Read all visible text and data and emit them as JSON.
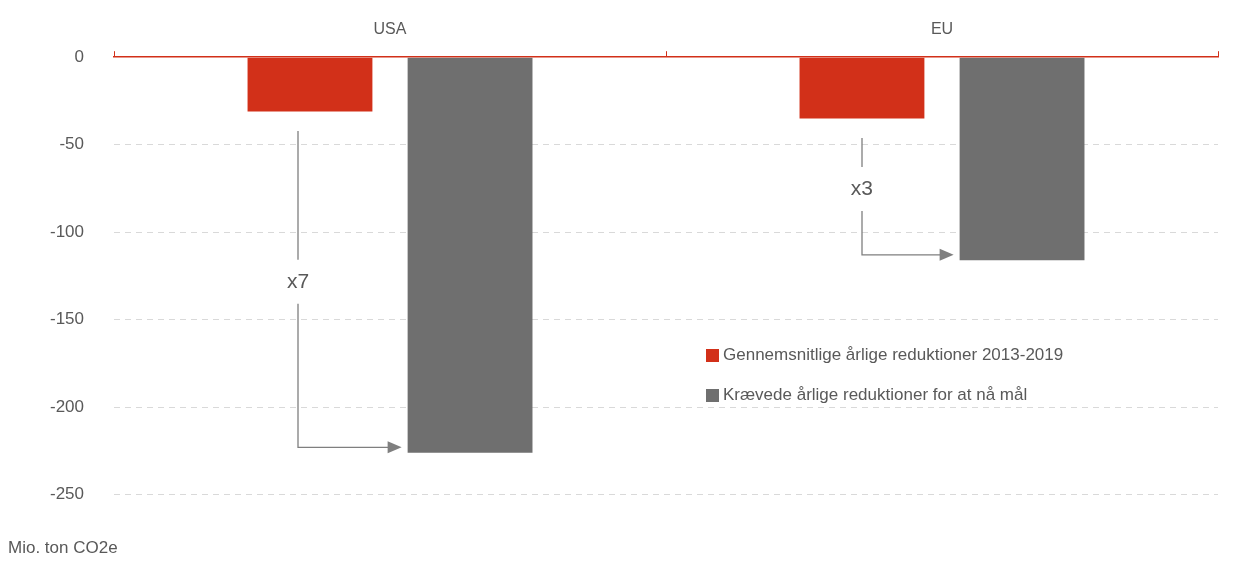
{
  "chart_data": {
    "type": "bar",
    "ylabel": "Mio. ton CO2e",
    "categories": [
      "USA",
      "EU"
    ],
    "series": [
      {
        "name": "Gennemsnitlige årlige reduktioner 2013-2019",
        "color": "#d23019",
        "values": [
          -31,
          -35
        ]
      },
      {
        "name": "Krævede årlige reduktioner for at nå mål",
        "color": "#6f6f6f",
        "values": [
          -226,
          -116
        ]
      }
    ],
    "ylim": [
      -250,
      0
    ],
    "yticks": [
      0,
      -50,
      -100,
      -150,
      -200,
      -250
    ],
    "grid": "y",
    "legend": "right",
    "annotations": [
      "x7",
      "x3"
    ]
  }
}
